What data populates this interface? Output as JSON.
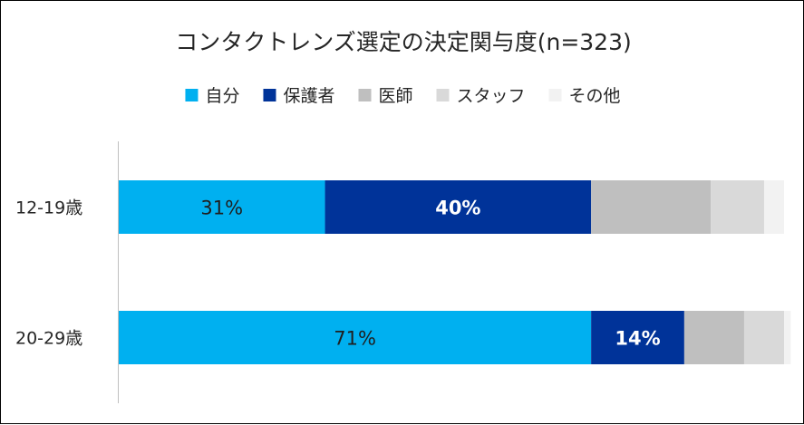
{
  "chart_data": {
    "type": "bar",
    "orientation": "horizontal",
    "stacked": true,
    "percent_stacked": true,
    "title": "コンタクトレンズ選定の決定関与度(n=323)",
    "legend_position": "top",
    "grid": false,
    "xlim": [
      0,
      100
    ],
    "categories": [
      "12-19歳",
      "20-29歳"
    ],
    "series": [
      {
        "name": "自分",
        "color": "#00B0F0",
        "values": [
          31,
          71
        ],
        "labels": [
          "31%",
          "71%"
        ],
        "label_color": "#1f1f1f",
        "label_bold": false
      },
      {
        "name": "保護者",
        "color": "#003399",
        "values": [
          40,
          14
        ],
        "labels": [
          "40%",
          "14%"
        ],
        "label_color": "#ffffff",
        "label_bold": true
      },
      {
        "name": "医師",
        "color": "#BFBFBF",
        "values": [
          18,
          9
        ],
        "labels": [
          "",
          ""
        ]
      },
      {
        "name": "スタッフ",
        "color": "#D9D9D9",
        "values": [
          8,
          6
        ],
        "labels": [
          "",
          ""
        ]
      },
      {
        "name": "その他",
        "color": "#F2F2F2",
        "values": [
          3,
          1
        ],
        "labels": [
          "",
          ""
        ]
      }
    ]
  }
}
